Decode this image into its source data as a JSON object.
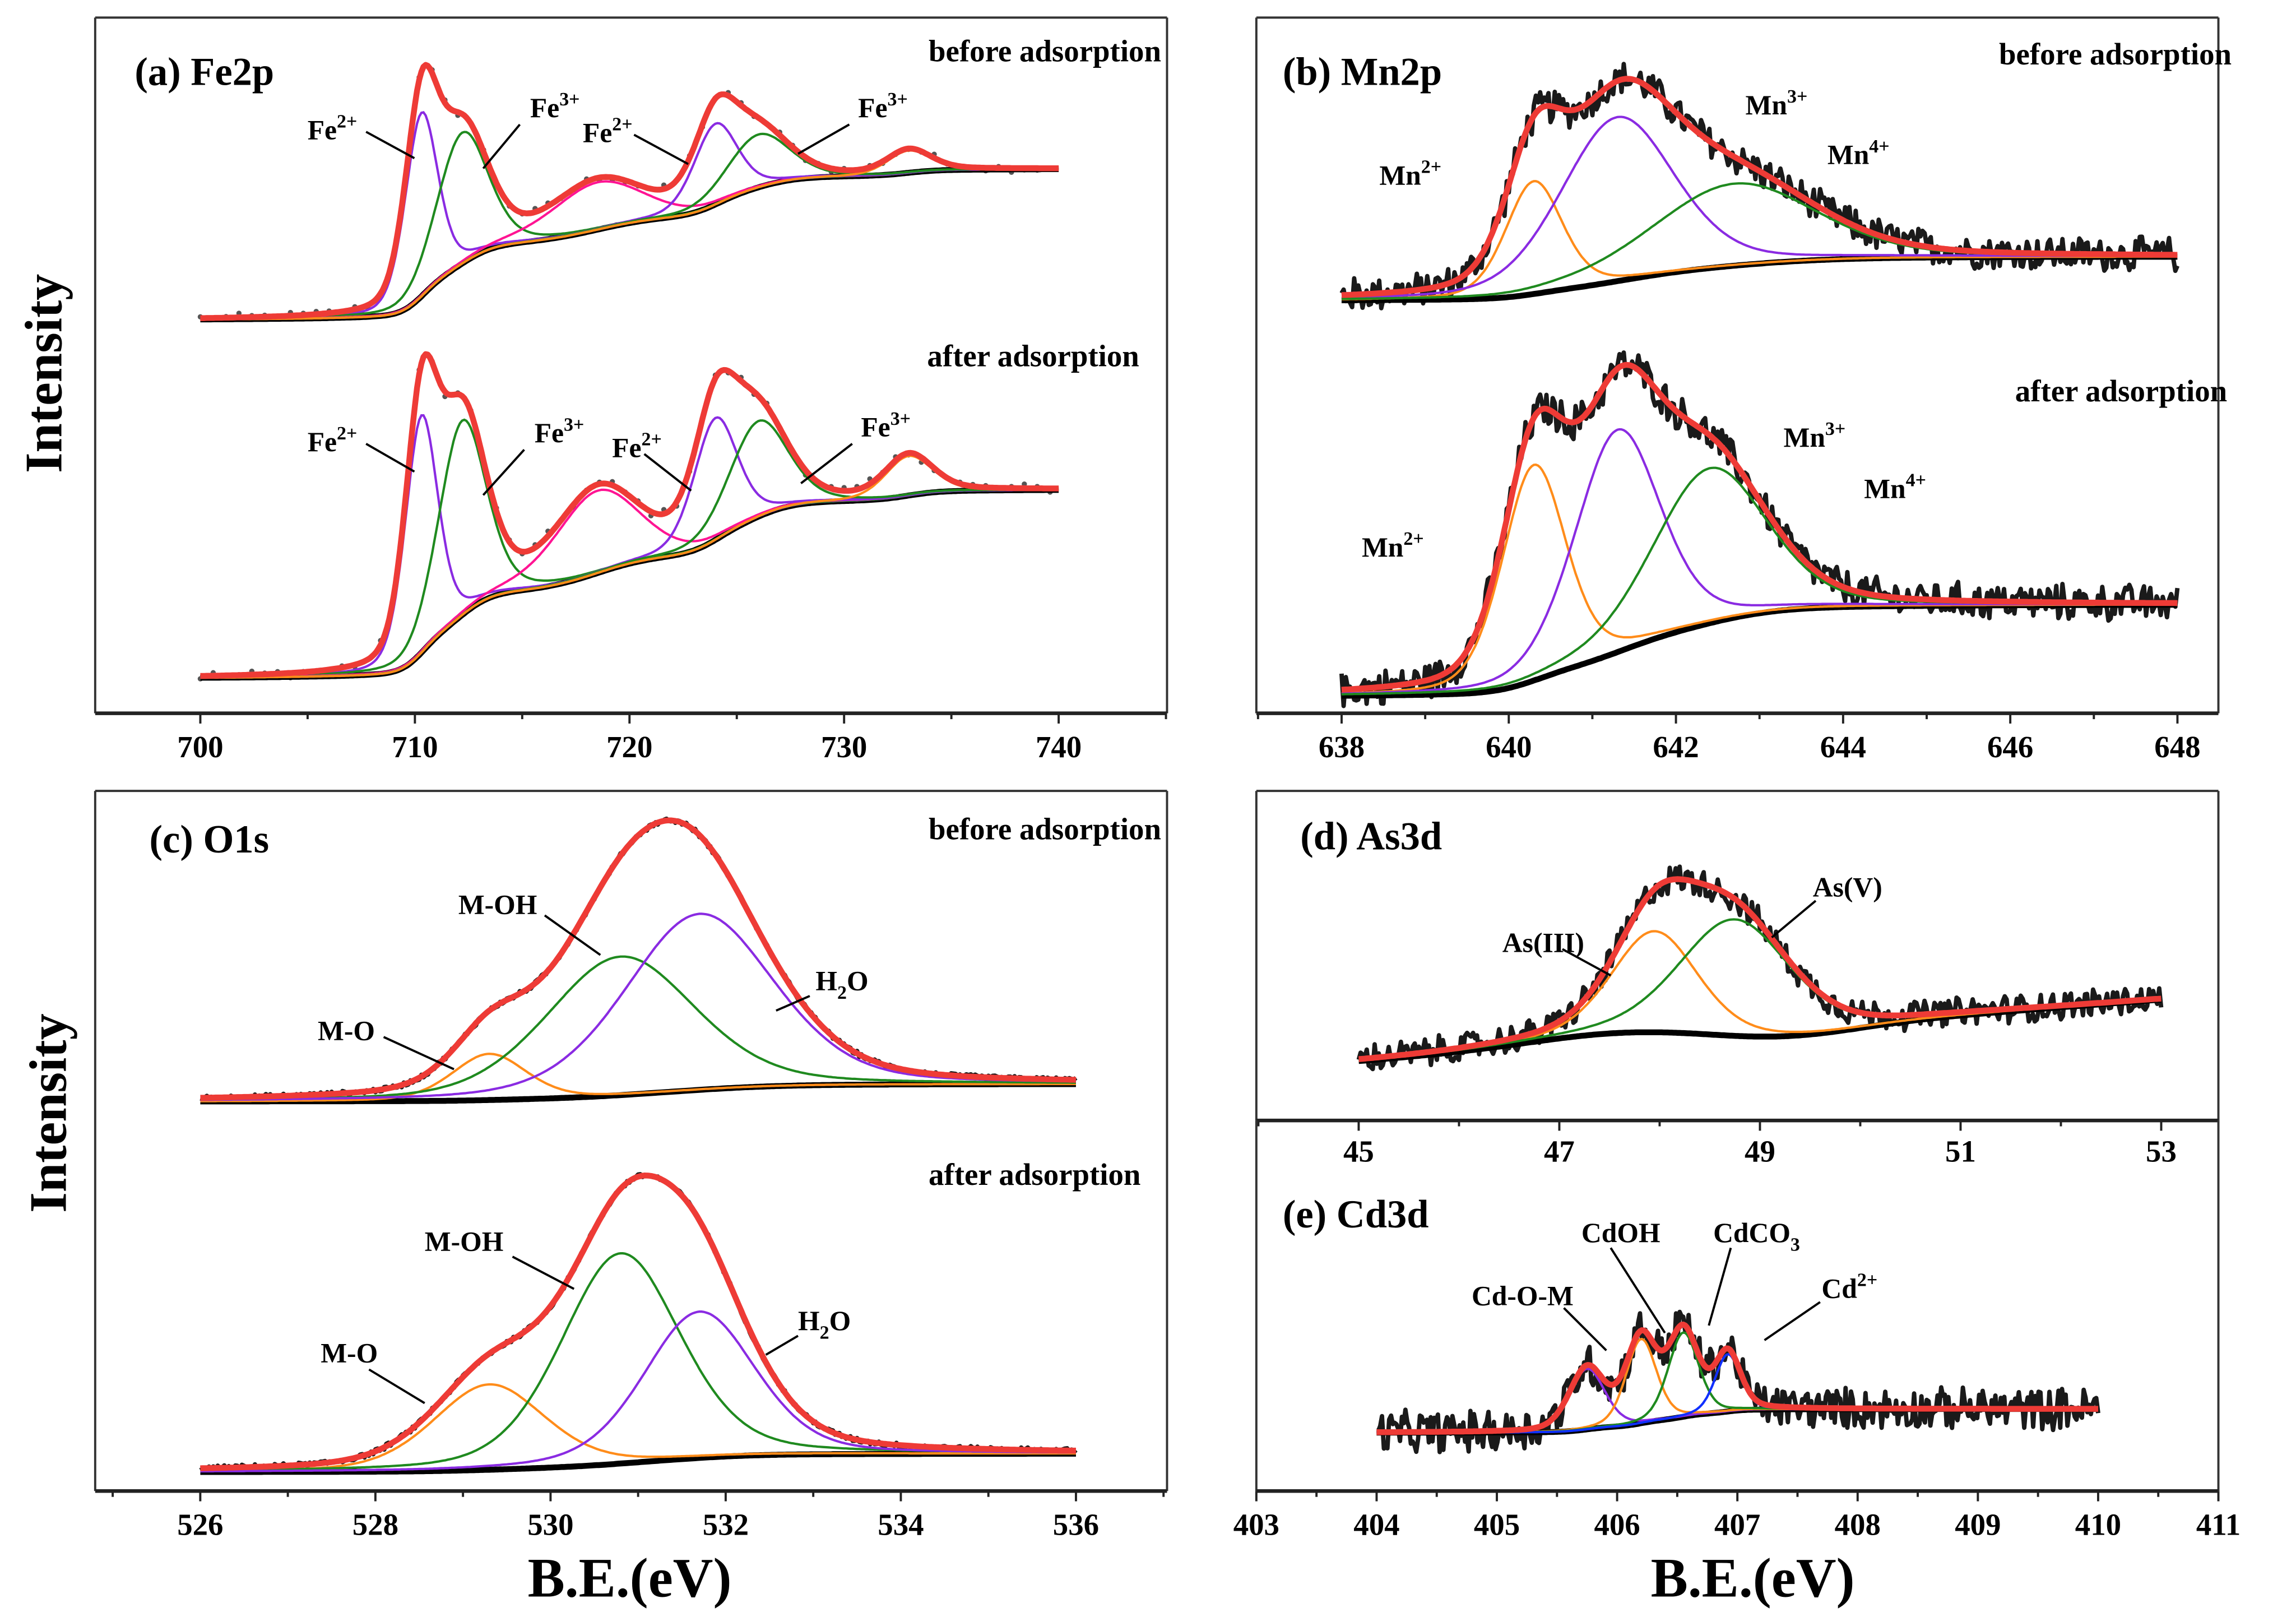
{
  "figure": {
    "ylabel": "Intensity",
    "xlabel": "B.E.(eV)"
  },
  "colors": {
    "envelope": "#ee3b36",
    "background": "#000000",
    "raw": "#1a1a1a",
    "dots": "#555555"
  },
  "chart_data": [
    {
      "id": "a",
      "type": "line",
      "title": "(a) Fe2p",
      "xlabel": "B.E.(eV)",
      "ylabel": "Intensity",
      "xlim": [
        695.1,
        745.05
      ],
      "xticks": [
        700,
        710,
        720,
        730,
        740
      ],
      "grid": false,
      "spectra": [
        {
          "condition": "before adsorption",
          "xrange": [
            700,
            740
          ],
          "raw_style": "dots",
          "noise": 0.015,
          "background": {
            "type": "shirley",
            "start": 0.01,
            "end": 0.55
          },
          "peaks": [
            {
              "center": 710.3,
              "height": 0.66,
              "fwhm": 1.8,
              "color": "#8a2be2"
            },
            {
              "center": 712.2,
              "height": 0.47,
              "fwhm": 2.8,
              "color": "#1f8a1f"
            },
            {
              "center": 718.5,
              "height": 0.17,
              "fwhm": 5.0,
              "color": "#ff1493"
            },
            {
              "center": 724.0,
              "height": 0.29,
              "fwhm": 2.4,
              "color": "#8a2be2"
            },
            {
              "center": 726.0,
              "height": 0.19,
              "fwhm": 3.4,
              "color": "#1f8a1f"
            },
            {
              "center": 733.0,
              "height": 0.08,
              "fwhm": 2.4,
              "color": "#ff8c1a"
            }
          ],
          "annotations": [
            {
              "base": "Fe",
              "sup": "2+"
            },
            {
              "base": "Fe",
              "sup": "3+"
            },
            {
              "base": "Fe",
              "sup": "2+"
            },
            {
              "base": "Fe",
              "sup": "3+"
            }
          ]
        },
        {
          "condition": "after adsorption",
          "xrange": [
            700,
            740
          ],
          "raw_style": "dots",
          "noise": 0.015,
          "background": {
            "type": "shirley",
            "start": 0.01,
            "end": 0.58
          },
          "peaks": [
            {
              "center": 710.3,
              "height": 0.72,
              "fwhm": 1.8,
              "color": "#8a2be2"
            },
            {
              "center": 712.2,
              "height": 0.59,
              "fwhm": 2.6,
              "color": "#1f8a1f"
            },
            {
              "center": 718.5,
              "height": 0.25,
              "fwhm": 4.6,
              "color": "#ff1493"
            },
            {
              "center": 724.0,
              "height": 0.37,
              "fwhm": 2.4,
              "color": "#8a2be2"
            },
            {
              "center": 726.0,
              "height": 0.29,
              "fwhm": 3.2,
              "color": "#1f8a1f"
            },
            {
              "center": 733.0,
              "height": 0.12,
              "fwhm": 2.6,
              "color": "#ff8c1a"
            }
          ],
          "annotations": [
            {
              "base": "Fe",
              "sup": "2+"
            },
            {
              "base": "Fe",
              "sup": "3+"
            },
            {
              "base": "Fe",
              "sup": "2+"
            },
            {
              "base": "Fe",
              "sup": "3+"
            }
          ]
        }
      ]
    },
    {
      "id": "b",
      "type": "line",
      "title": "(b) Mn2p",
      "xlabel": "B.E.(eV)",
      "ylabel": "Intensity",
      "xlim": [
        636.98,
        648.49
      ],
      "xticks": [
        638,
        640,
        642,
        644,
        646,
        648
      ],
      "grid": false,
      "spectra": [
        {
          "condition": "before adsorption",
          "xrange": [
            638,
            648
          ],
          "raw_style": "line",
          "noise": 0.05,
          "background": {
            "type": "shirley",
            "start": 0.0,
            "end": 0.17
          },
          "peaks": [
            {
              "center": 640.3,
              "height": 0.44,
              "fwhm": 0.8,
              "color": "#ff8c1a"
            },
            {
              "center": 641.3,
              "height": 0.64,
              "fwhm": 1.6,
              "color": "#8a2be2"
            },
            {
              "center": 642.7,
              "height": 0.32,
              "fwhm": 2.3,
              "color": "#1f8a1f"
            }
          ],
          "annotations": [
            {
              "base": "Mn",
              "sup": "2+"
            },
            {
              "base": "Mn",
              "sup": "3+"
            },
            {
              "base": "Mn",
              "sup": "4+"
            }
          ]
        },
        {
          "condition": "after adsorption",
          "xrange": [
            638,
            648
          ],
          "raw_style": "line",
          "noise": 0.04,
          "background": {
            "type": "shirley",
            "start": 0.0,
            "end": 0.27
          },
          "peaks": [
            {
              "center": 640.3,
              "height": 0.64,
              "fwhm": 0.9,
              "color": "#ff8c1a"
            },
            {
              "center": 641.3,
              "height": 0.66,
              "fwhm": 1.2,
              "color": "#8a2be2"
            },
            {
              "center": 642.4,
              "height": 0.46,
              "fwhm": 1.6,
              "color": "#1f8a1f"
            }
          ],
          "annotations": [
            {
              "base": "Mn",
              "sup": "2+"
            },
            {
              "base": "Mn",
              "sup": "3+"
            },
            {
              "base": "Mn",
              "sup": "4+"
            }
          ]
        }
      ]
    },
    {
      "id": "c",
      "type": "line",
      "title": "(c) O1s",
      "xlabel": "B.E.(eV)",
      "ylabel": "Intensity",
      "xlim": [
        524.8,
        537.04
      ],
      "xticks": [
        526,
        528,
        530,
        532,
        534,
        536
      ],
      "grid": false,
      "spectra": [
        {
          "condition": "before adsorption",
          "xrange": [
            526,
            536
          ],
          "raw_style": "line",
          "noise": 0.006,
          "background": {
            "type": "shirley",
            "start": 0.0,
            "end": 0.06
          },
          "peaks": [
            {
              "center": 529.3,
              "height": 0.16,
              "fwhm": 1.0,
              "color": "#ff8c1a"
            },
            {
              "center": 530.8,
              "height": 0.48,
              "fwhm": 2.0,
              "color": "#1f8a1f"
            },
            {
              "center": 531.7,
              "height": 0.61,
              "fwhm": 2.0,
              "color": "#8a2be2"
            }
          ],
          "annotations": [
            {
              "base": "M-OH"
            },
            {
              "base": "H",
              "sub": "2",
              "tail": "O"
            },
            {
              "base": "M-O"
            }
          ]
        },
        {
          "condition": "after adsorption",
          "xrange": [
            526,
            536
          ],
          "raw_style": "line",
          "noise": 0.006,
          "background": {
            "type": "shirley",
            "start": 0.0,
            "end": 0.06
          },
          "peaks": [
            {
              "center": 529.3,
              "height": 0.28,
              "fwhm": 1.5,
              "color": "#ff8c1a"
            },
            {
              "center": 530.8,
              "height": 0.69,
              "fwhm": 1.6,
              "color": "#1f8a1f"
            },
            {
              "center": 531.7,
              "height": 0.48,
              "fwhm": 1.5,
              "color": "#8a2be2"
            }
          ],
          "annotations": [
            {
              "base": "M-OH"
            },
            {
              "base": "H",
              "sub": "2",
              "tail": "O"
            },
            {
              "base": "M-O"
            }
          ]
        }
      ]
    },
    {
      "id": "d",
      "type": "line",
      "title": "(d) As3d",
      "xlabel": "B.E.(eV)",
      "ylabel": "Intensity",
      "xlim": [
        43.98,
        53.57
      ],
      "xticks": [
        45,
        47,
        49,
        51,
        53
      ],
      "grid": false,
      "spectra": [
        {
          "condition": "",
          "xrange": [
            45,
            53
          ],
          "raw_style": "line",
          "noise": 0.05,
          "background": {
            "type": "linear",
            "start": 0.07,
            "end": 0.35
          },
          "peaks": [
            {
              "center": 47.95,
              "height": 0.46,
              "fwhm": 1.0,
              "color": "#ff8c1a"
            },
            {
              "center": 48.75,
              "height": 0.53,
              "fwhm": 1.3,
              "color": "#1f8a1f"
            }
          ],
          "annotations": [
            {
              "base": "As(III)"
            },
            {
              "base": "As(V)"
            }
          ]
        }
      ]
    },
    {
      "id": "e",
      "type": "line",
      "title": "(e) Cd3d",
      "xlabel": "B.E.(eV)",
      "ylabel": "Intensity",
      "xlim": [
        403,
        411
      ],
      "xticks": [
        403,
        404,
        405,
        406,
        407,
        408,
        409,
        410,
        411
      ],
      "grid": false,
      "spectra": [
        {
          "condition": "",
          "xrange": [
            404,
            410
          ],
          "raw_style": "line",
          "noise": 0.09,
          "background": {
            "type": "shirley",
            "start": 0.06,
            "end": 0.2
          },
          "peaks": [
            {
              "center": 405.75,
              "height": 0.36,
              "fwhm": 0.35,
              "color": "#8a2be2"
            },
            {
              "center": 406.2,
              "height": 0.5,
              "fwhm": 0.3,
              "color": "#ff8c1a"
            },
            {
              "center": 406.55,
              "height": 0.5,
              "fwhm": 0.3,
              "color": "#1f8a1f"
            },
            {
              "center": 406.92,
              "height": 0.34,
              "fwhm": 0.25,
              "color": "#1030ff"
            }
          ],
          "annotations": [
            {
              "base": "Cd-O-M"
            },
            {
              "base": "CdOH"
            },
            {
              "base": "CdCO",
              "sub": "3"
            },
            {
              "base": "Cd",
              "sup": "2+"
            }
          ]
        }
      ]
    }
  ]
}
